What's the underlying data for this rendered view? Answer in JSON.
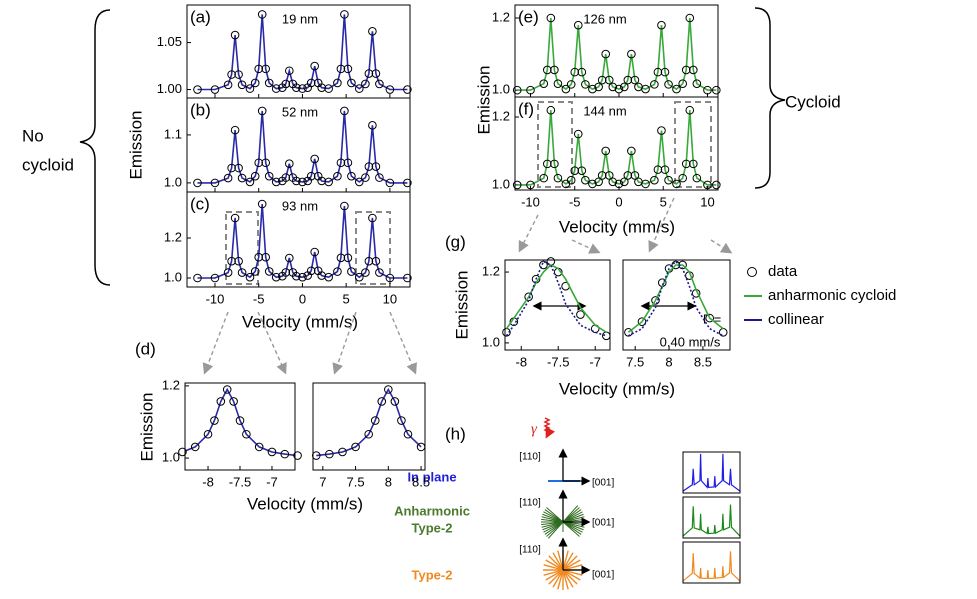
{
  "figure": {
    "no_cycloid": [
      "No",
      "cycloid"
    ],
    "cycloid": "Cycloid",
    "left_ylabel": "Emission",
    "left_xlabel": "Velocity (mm/s)",
    "right_ylabel": "Emission",
    "right_xlabel": "Velocity (mm/s)",
    "d_label": "(d)",
    "d_ylabel": "Emission",
    "d_xlabel": "Velocity (mm/s)",
    "g_label": "(g)",
    "g_ylabel": "Emission",
    "g_xlabel": "Velocity (mm/s)",
    "gamma_label": "Γ =",
    "gamma_value": "0.40 mm/s",
    "h_label": "(h)",
    "gamma": "γ",
    "in_plane": "In plane",
    "anharmonic": [
      "Anharmonic",
      "Type-2"
    ],
    "type2": "Type-2",
    "axis_110": [
      "[110]",
      "[110]",
      "[110]"
    ],
    "axis_001": [
      "[001]",
      "[001]",
      "[001]"
    ]
  },
  "chart_data": [
    {
      "type": "line",
      "label": "(a)",
      "annotation": "19 nm",
      "x": [
        -12,
        -10,
        -8.5,
        -8.1,
        -7.7,
        -7.3,
        -6.9,
        -6,
        -5.4,
        -5,
        -4.6,
        -4.2,
        -3.8,
        -3,
        -2.3,
        -1.9,
        -1.5,
        -1.1,
        -0.7,
        0,
        0.6,
        1,
        1.4,
        1.8,
        2.2,
        3,
        4,
        4.4,
        4.8,
        5.2,
        5.6,
        6.5,
        7.2,
        7.6,
        8,
        8.4,
        8.8,
        10,
        12
      ],
      "series": [
        {
          "color": "#2a2aa8",
          "line": true,
          "markers": true,
          "values": [
            1,
            1,
            1.005,
            1.016,
            1.058,
            1.016,
            1.005,
            1.001,
            1.007,
            1.022,
            1.08,
            1.022,
            1.007,
            1.001,
            1.002,
            1.006,
            1.02,
            1.006,
            1.002,
            1.001,
            1.002,
            1.007,
            1.025,
            1.007,
            1.002,
            1.001,
            1.007,
            1.022,
            1.08,
            1.022,
            1.007,
            1.001,
            1.006,
            1.017,
            1.062,
            1.017,
            1.006,
            1,
            1
          ]
        }
      ],
      "xlim": [
        -13.2,
        12.3
      ],
      "xticks": [
        -10,
        -5,
        0,
        5,
        10
      ],
      "show_xtick_labels": false,
      "ylim": [
        0.991,
        1.09
      ],
      "yticks": [
        {
          "value": 1,
          "label": "1.00"
        },
        1.05
      ]
    },
    {
      "type": "line",
      "label": "(b)",
      "annotation": "52 nm",
      "x": [
        -12,
        -10,
        -8.5,
        -8.1,
        -7.7,
        -7.3,
        -6.9,
        -6,
        -5.4,
        -5,
        -4.6,
        -4.2,
        -3.8,
        -3,
        -2.3,
        -1.9,
        -1.5,
        -1.1,
        -0.7,
        0,
        0.6,
        1,
        1.4,
        1.8,
        2.2,
        3,
        4,
        4.4,
        4.8,
        5.2,
        5.6,
        6.5,
        7.2,
        7.6,
        8,
        8.4,
        8.8,
        10,
        12
      ],
      "series": [
        {
          "color": "#2a2aa8",
          "line": true,
          "markers": true,
          "values": [
            1,
            1,
            1.01,
            1.031,
            1.11,
            1.031,
            1.01,
            1.002,
            1.014,
            1.042,
            1.15,
            1.042,
            1.014,
            1.002,
            1.004,
            1.011,
            1.04,
            1.011,
            1.004,
            1.002,
            1.004,
            1.014,
            1.05,
            1.014,
            1.004,
            1.002,
            1.014,
            1.042,
            1.15,
            1.042,
            1.014,
            1.002,
            1.011,
            1.034,
            1.12,
            1.034,
            1.011,
            1,
            1
          ]
        }
      ],
      "xlim": [
        -13.2,
        12.3
      ],
      "xticks": [
        -10,
        -5,
        0,
        5,
        10
      ],
      "show_xtick_labels": false,
      "ylim": [
        0.981,
        1.177
      ],
      "yticks": [
        {
          "value": 1,
          "label": "1.0"
        },
        1.1
      ]
    },
    {
      "type": "line",
      "label": "(c)",
      "annotation": "93 nm",
      "x": [
        -12,
        -10,
        -8.5,
        -8.1,
        -7.7,
        -7.3,
        -6.9,
        -6,
        -5.4,
        -5,
        -4.6,
        -4.2,
        -3.8,
        -3,
        -2.3,
        -1.9,
        -1.5,
        -1.1,
        -0.7,
        0,
        0.6,
        1,
        1.4,
        1.8,
        2.2,
        3,
        4,
        4.4,
        4.8,
        5.2,
        5.6,
        6.5,
        7.2,
        7.6,
        8,
        8.4,
        8.8,
        10,
        12
      ],
      "series": [
        {
          "color": "#2a2aa8",
          "line": true,
          "markers": true,
          "values": [
            1,
            1,
            1.027,
            1.084,
            1.3,
            1.084,
            1.027,
            1.004,
            1.033,
            1.104,
            1.37,
            1.104,
            1.033,
            1.004,
            1.009,
            1.028,
            1.1,
            1.028,
            1.009,
            1.004,
            1.012,
            1.036,
            1.13,
            1.036,
            1.012,
            1.004,
            1.032,
            1.101,
            1.36,
            1.101,
            1.032,
            1.004,
            1.027,
            1.084,
            1.3,
            1.084,
            1.027,
            1,
            1
          ]
        }
      ],
      "xlim": [
        -13.2,
        12.3
      ],
      "xticks": [
        -10,
        -5,
        0,
        5,
        10
      ],
      "ylim": [
        0.955,
        1.43
      ],
      "yticks": [
        {
          "value": 1,
          "label": "1.0"
        },
        1.2
      ]
    },
    {
      "type": "line",
      "x": [
        -8.4,
        -8.2,
        -8,
        -7.9,
        -7.8,
        -7.7,
        -7.6,
        -7.5,
        -7.4,
        -7.2,
        -7,
        -6.8,
        -6.6
      ],
      "series": [
        {
          "color": "#2a2aa8",
          "line": true,
          "markers": true,
          "values": [
            1.017,
            1.031,
            1.066,
            1.104,
            1.157,
            1.19,
            1.157,
            1.104,
            1.066,
            1.031,
            1.017,
            1.011,
            1.007
          ]
        }
      ],
      "xlim": [
        -8.36,
        -6.64
      ],
      "xticks": [
        -8,
        -7.5,
        -7
      ],
      "ylim": [
        0.967,
        1.208
      ],
      "yticks": [
        {
          "value": 1,
          "label": "1.0"
        },
        1.2
      ]
    },
    {
      "type": "line",
      "x": [
        6.9,
        7.1,
        7.3,
        7.5,
        7.7,
        7.8,
        7.9,
        8,
        8.1,
        8.2,
        8.3,
        8.5
      ],
      "series": [
        {
          "color": "#2a2aa8",
          "line": true,
          "markers": true,
          "values": [
            1.007,
            1.011,
            1.017,
            1.031,
            1.066,
            1.104,
            1.157,
            1.19,
            1.157,
            1.104,
            1.066,
            1.031
          ]
        }
      ],
      "xlim": [
        6.85,
        8.56
      ],
      "xticks": [
        7,
        7.5,
        8,
        8.5
      ],
      "ylim": [
        0.967,
        1.208
      ],
      "yticks": []
    },
    {
      "type": "line",
      "label": "(e)",
      "annotation": "126 nm",
      "x": [
        -11.5,
        -10,
        -8.5,
        -8.1,
        -7.7,
        -7.3,
        -6.9,
        -6,
        -5.4,
        -5,
        -4.6,
        -4.2,
        -3.8,
        -3,
        -2.3,
        -1.9,
        -1.5,
        -1.1,
        -0.7,
        0,
        0.6,
        1,
        1.4,
        1.8,
        2.2,
        3,
        4,
        4.4,
        4.8,
        5.2,
        5.6,
        6.5,
        7.2,
        7.6,
        8,
        8.4,
        8.8,
        10,
        11
      ],
      "series": [
        {
          "color": "#3aa83a",
          "line": true,
          "markers": true,
          "values": [
            1,
            1,
            1.018,
            1.056,
            1.2,
            1.056,
            1.018,
            1.003,
            1.016,
            1.05,
            1.18,
            1.05,
            1.016,
            1.003,
            1.009,
            1.028,
            1.1,
            1.028,
            1.009,
            1.003,
            1.009,
            1.028,
            1.1,
            1.028,
            1.009,
            1.003,
            1.016,
            1.05,
            1.18,
            1.05,
            1.016,
            1.003,
            1.018,
            1.056,
            1.2,
            1.056,
            1.018,
            1,
            1
          ]
        }
      ],
      "xlim": [
        -11.75,
        11.19
      ],
      "xticks": [
        -10,
        -5,
        0,
        5,
        10
      ],
      "show_xtick_labels": false,
      "ylim": [
        0.981,
        1.236
      ],
      "yticks": [
        {
          "value": 1,
          "label": "1.0"
        },
        1.2
      ]
    },
    {
      "type": "line",
      "label": "(f)",
      "annotation": "144 nm",
      "x": [
        -11.5,
        -10,
        -8.5,
        -8.1,
        -7.7,
        -7.3,
        -6.9,
        -6,
        -5.4,
        -5,
        -4.6,
        -4.2,
        -3.8,
        -3,
        -2.3,
        -1.9,
        -1.5,
        -1.1,
        -0.7,
        0,
        0.6,
        1,
        1.4,
        1.8,
        2.2,
        3,
        4,
        4.4,
        4.8,
        5.2,
        5.6,
        6.5,
        7.2,
        7.6,
        8,
        8.4,
        8.8,
        10,
        11
      ],
      "series": [
        {
          "color": "#3aa83a",
          "line": true,
          "markers": true,
          "values": [
            1,
            1,
            1.02,
            1.062,
            1.22,
            1.062,
            1.02,
            1.003,
            1.014,
            1.042,
            1.15,
            1.042,
            1.014,
            1.003,
            1.009,
            1.028,
            1.1,
            1.028,
            1.009,
            1.003,
            1.009,
            1.028,
            1.1,
            1.028,
            1.009,
            1.003,
            1.014,
            1.045,
            1.16,
            1.045,
            1.014,
            1.003,
            1.02,
            1.062,
            1.22,
            1.062,
            1.02,
            1,
            1
          ]
        }
      ],
      "xlim": [
        -11.75,
        11.19
      ],
      "xticks": [
        -10,
        -5,
        0,
        5,
        10
      ],
      "ylim": [
        0.985,
        1.259
      ],
      "yticks": [
        {
          "value": 1,
          "label": "1.0"
        },
        1.2
      ]
    },
    {
      "type": "line",
      "x": [
        -8.2,
        -8.1,
        -7.9,
        -7.8,
        -7.7,
        -7.6,
        -7.5,
        -7.4,
        -7.2,
        -7,
        -6.85
      ],
      "series": [
        {
          "name": "data",
          "color": "#000000",
          "line": false,
          "markers": true,
          "values": [
            1.03,
            1.06,
            1.13,
            1.18,
            1.22,
            1.23,
            1.2,
            1.16,
            1.08,
            1.04,
            1.02
          ]
        },
        {
          "name": "anharmonic cycloid",
          "color": "#3aa83a",
          "line": true,
          "markers": false,
          "values": [
            1.04,
            1.07,
            1.13,
            1.17,
            1.2,
            1.22,
            1.21,
            1.18,
            1.1,
            1.05,
            1.03
          ]
        },
        {
          "name": "collinear",
          "color": "#1a1a90",
          "line": true,
          "markers": false,
          "dashed": true,
          "values": [
            1.02,
            1.05,
            1.12,
            1.18,
            1.23,
            1.22,
            1.17,
            1.11,
            1.05,
            1.03,
            1.02
          ]
        }
      ],
      "xlim": [
        -8.22,
        -6.8
      ],
      "xticks": [
        -8,
        -7.5,
        -7
      ],
      "ylim": [
        0.98,
        1.234
      ],
      "yticks": [
        {
          "value": 1,
          "label": "1.0"
        },
        1.2
      ]
    },
    {
      "type": "line",
      "x": [
        7.4,
        7.6,
        7.8,
        7.9,
        8,
        8.1,
        8.2,
        8.3,
        8.4,
        8.6,
        8.8
      ],
      "series": [
        {
          "color": "#000000",
          "line": false,
          "markers": true,
          "values": [
            1.03,
            1.06,
            1.12,
            1.17,
            1.21,
            1.22,
            1.22,
            1.19,
            1.14,
            1.07,
            1.03
          ]
        },
        {
          "color": "#3aa83a",
          "line": true,
          "markers": false,
          "values": [
            1.03,
            1.06,
            1.12,
            1.16,
            1.2,
            1.22,
            1.22,
            1.2,
            1.15,
            1.07,
            1.04
          ]
        },
        {
          "color": "#1a1a90",
          "line": true,
          "markers": false,
          "dashed": true,
          "values": [
            1.02,
            1.04,
            1.1,
            1.16,
            1.21,
            1.23,
            1.21,
            1.16,
            1.1,
            1.04,
            1.02
          ]
        }
      ],
      "xlim": [
        7.32,
        8.9
      ],
      "xticks": [
        7.5,
        8,
        8.5
      ],
      "ylim": [
        0.98,
        1.234
      ],
      "yticks": []
    },
    {
      "type": "line",
      "x": [
        -12,
        -8.1,
        -7.7,
        -7.3,
        -4.9,
        -4.6,
        -4.3,
        -1.8,
        -1.5,
        -1.2,
        1.1,
        1.4,
        1.7,
        4.5,
        4.8,
        5.1,
        7.6,
        8,
        8.4,
        12
      ],
      "series": [
        {
          "color": "#1f1fe0",
          "line": true,
          "markers": false,
          "values": [
            0.05,
            0.22,
            0.65,
            0.22,
            0.33,
            1.05,
            0.33,
            0.15,
            0.4,
            0.15,
            0.16,
            0.45,
            0.16,
            0.33,
            1.05,
            0.33,
            0.22,
            0.65,
            0.22,
            0.05
          ]
        }
      ],
      "xlim": [
        -12,
        12
      ],
      "ylim": [
        0,
        1.1
      ]
    },
    {
      "type": "line",
      "x": [
        -12,
        -8.1,
        -7.7,
        -7.3,
        -4.9,
        -4.6,
        -4.3,
        -1.8,
        -1.5,
        -1.2,
        1.1,
        1.4,
        1.7,
        4.5,
        4.8,
        5.1,
        7.6,
        8,
        8.4,
        12
      ],
      "series": [
        {
          "color": "#1a8a1a",
          "line": true,
          "markers": false,
          "values": [
            0.05,
            0.27,
            0.85,
            0.27,
            0.22,
            0.65,
            0.22,
            0.12,
            0.3,
            0.12,
            0.13,
            0.35,
            0.13,
            0.22,
            0.65,
            0.22,
            0.29,
            0.9,
            0.29,
            0.05
          ]
        }
      ],
      "xlim": [
        -12,
        12
      ],
      "ylim": [
        0,
        1.1
      ]
    },
    {
      "type": "line",
      "x": [
        -12,
        -8.1,
        -7.7,
        -7.3,
        -4.9,
        -4.6,
        -4.3,
        -1.8,
        -1.5,
        -1.2,
        1.1,
        1.4,
        1.7,
        4.5,
        4.8,
        5.1,
        7.6,
        8,
        8.4,
        12
      ],
      "series": [
        {
          "color": "#f08a20",
          "line": true,
          "markers": false,
          "values": [
            0.05,
            0.26,
            0.8,
            0.26,
            0.13,
            0.4,
            0.13,
            0.12,
            0.35,
            0.12,
            0.13,
            0.4,
            0.13,
            0.15,
            0.45,
            0.15,
            0.27,
            0.85,
            0.27,
            0.05
          ]
        }
      ],
      "xlim": [
        -12,
        12
      ],
      "ylim": [
        0,
        1.1
      ]
    }
  ]
}
